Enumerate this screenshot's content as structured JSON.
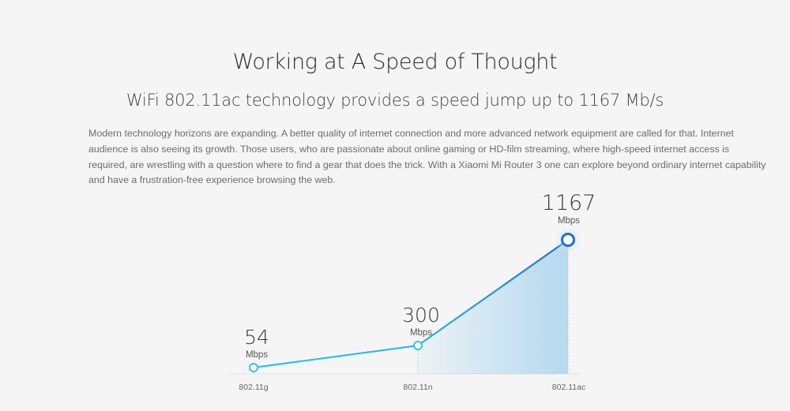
{
  "title": "Working at A Speed of Thought",
  "subtitle": "WiFi 802.11ac technology provides a speed jump up to 1167 Mb/s",
  "description": "Modern technology horizons are expanding. A better quality of internet connection and more advanced network equipment are called for that. Internet audience is also seeing its growth. Those users, who are passionate about online gaming or HD-film streaming, where high-speed internet access is required, are wrestling with a question where to find a gear that does the trick. With a Xiaomi Mi Router 3 one can explore beyond ordinary internet capability and have a frustration-free experience browsing the web.",
  "colors": {
    "line_start": "#2ec8dd",
    "line_end": "#1e73c8",
    "area": "#a9d4ee"
  },
  "chart_data": {
    "type": "line",
    "categories": [
      "802.11g",
      "802.11n",
      "802.11ac"
    ],
    "values": [
      54,
      300,
      1167
    ],
    "value_labels": [
      "54",
      "300",
      "1167"
    ],
    "unit": "Mbps",
    "area_under_last_segment": true,
    "grid": false,
    "legend": "none"
  }
}
